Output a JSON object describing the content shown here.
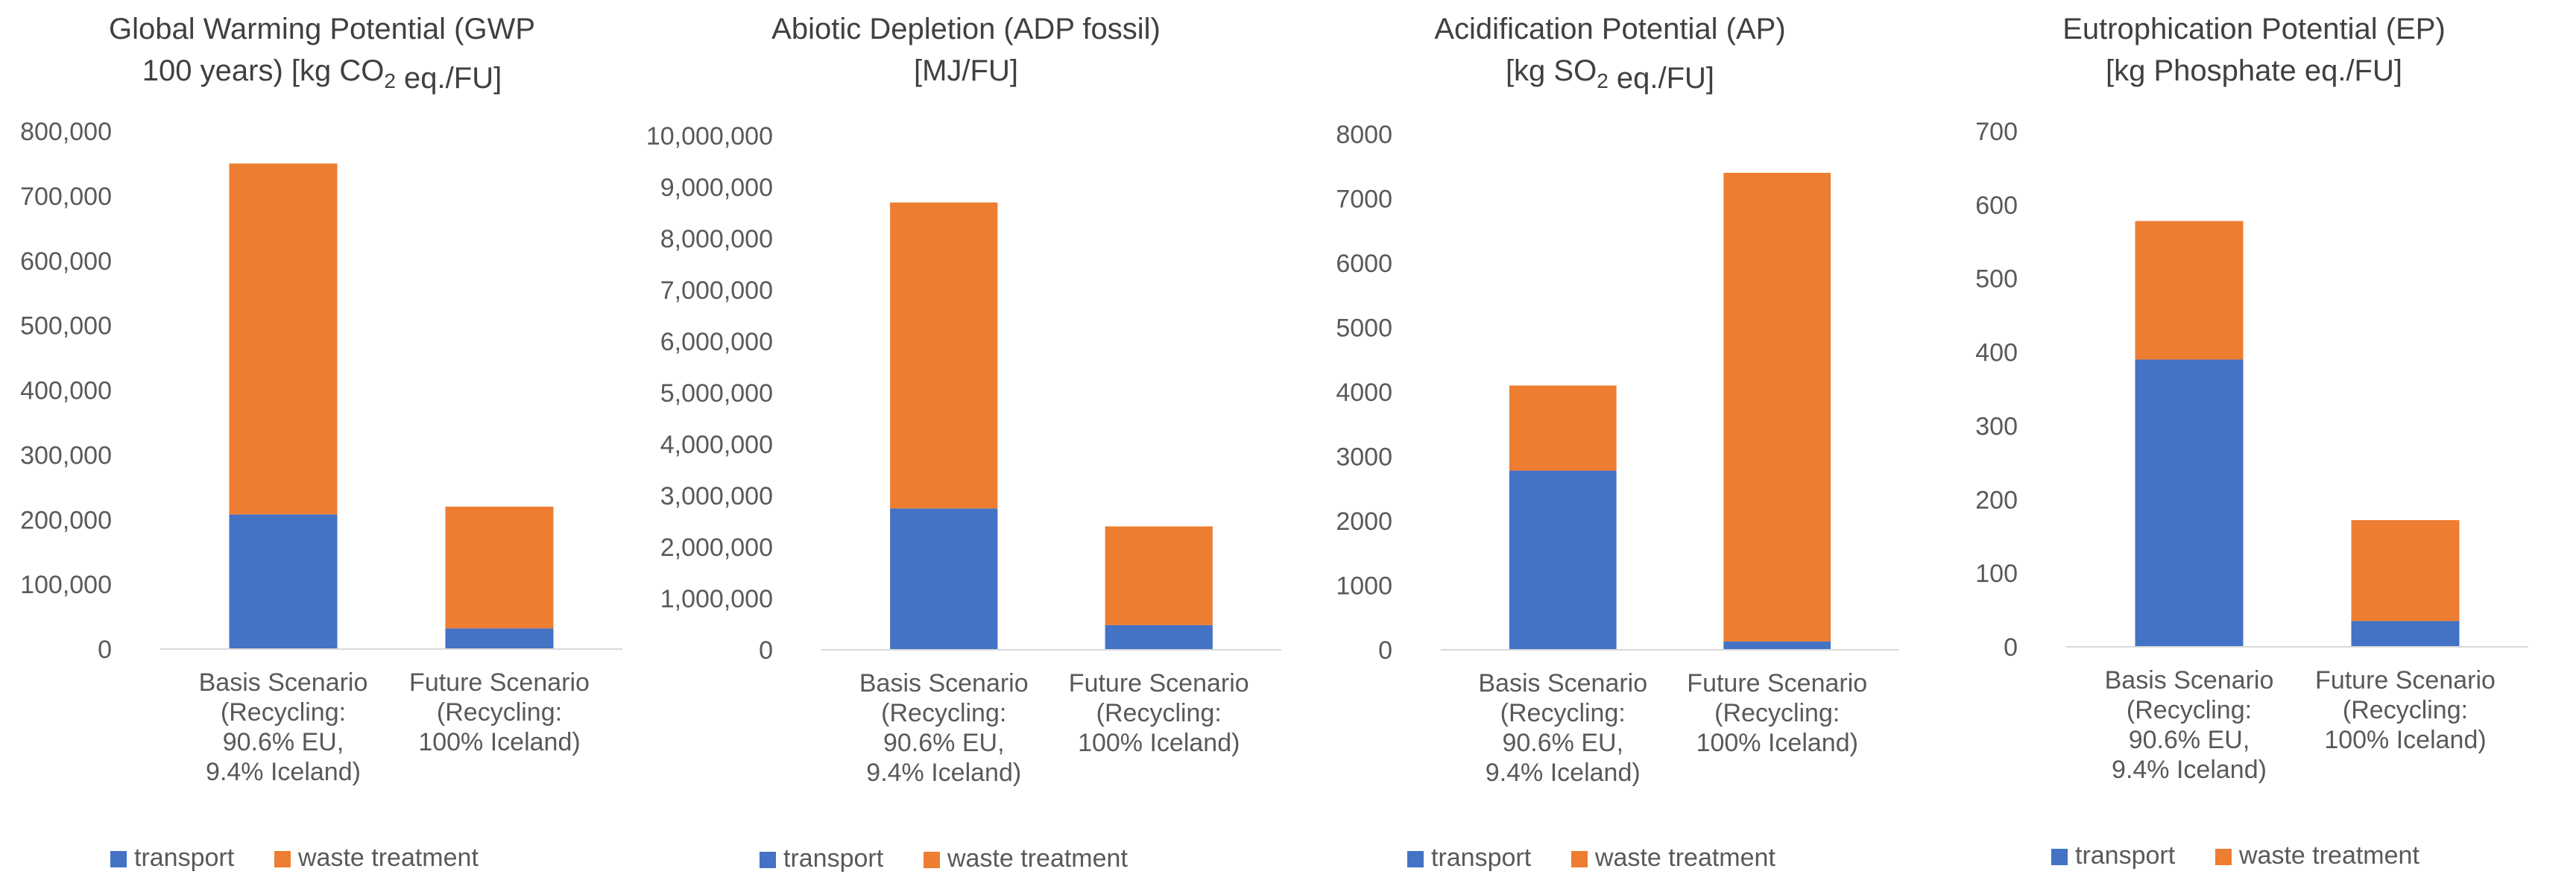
{
  "colors": {
    "transport": "#4472c4",
    "waste_treatment": "#ed7d31"
  },
  "chart_data": [
    {
      "type": "bar",
      "stacked": true,
      "title_lines": [
        [
          "Global Warming Potential (GWP"
        ],
        [
          "100 years) [kg CO",
          {
            "sub": "2"
          },
          " eq./FU]"
        ]
      ],
      "categories": [
        [
          "Basis Scenario",
          "(Recycling:",
          "90.6% EU,",
          "9.4% Iceland)"
        ],
        [
          "Future Scenario",
          "(Recycling:",
          "100% Iceland)"
        ]
      ],
      "series": [
        {
          "name": "transport",
          "values": [
            208000,
            32000
          ]
        },
        {
          "name": "waste treatment",
          "values": [
            542000,
            188000
          ]
        }
      ],
      "yticks": [
        "0",
        "100,000",
        "200,000",
        "300,000",
        "400,000",
        "500,000",
        "600,000",
        "700,000",
        "800,000"
      ],
      "ylim": [
        0,
        800000
      ],
      "legend": "bottom-left",
      "grid": false
    },
    {
      "type": "bar",
      "stacked": true,
      "title_lines": [
        [
          "Abiotic Depletion (ADP fossil)"
        ],
        [
          "[MJ/FU]"
        ]
      ],
      "categories": [
        [
          "Basis Scenario",
          "(Recycling:",
          "90.6% EU,",
          "9.4% Iceland)"
        ],
        [
          "Future Scenario",
          "(Recycling:",
          "100% Iceland)"
        ]
      ],
      "series": [
        {
          "name": "transport",
          "values": [
            2750000,
            480000
          ]
        },
        {
          "name": "waste treatment",
          "values": [
            5950000,
            1920000
          ]
        }
      ],
      "yticks": [
        "0",
        "1,000,000",
        "2,000,000",
        "3,000,000",
        "4,000,000",
        "5,000,000",
        "6,000,000",
        "7,000,000",
        "8,000,000",
        "9,000,000",
        "10,000,000"
      ],
      "ylim": [
        0,
        10000000
      ],
      "legend": "bottom-left",
      "grid": false
    },
    {
      "type": "bar",
      "stacked": true,
      "title_lines": [
        [
          "Acidification Potential (AP)"
        ],
        [
          "[kg SO",
          {
            "sub": "2"
          },
          " eq./FU]"
        ]
      ],
      "categories": [
        [
          "Basis Scenario",
          "(Recycling:",
          "90.6% EU,",
          "9.4% Iceland)"
        ],
        [
          "Future Scenario",
          "(Recycling:",
          "100% Iceland)"
        ]
      ],
      "series": [
        {
          "name": "transport",
          "values": [
            2780,
            130
          ]
        },
        {
          "name": "waste treatment",
          "values": [
            1320,
            7270
          ]
        }
      ],
      "yticks": [
        "0",
        "1000",
        "2000",
        "3000",
        "4000",
        "5000",
        "6000",
        "7000",
        "8000"
      ],
      "ylim": [
        0,
        8000
      ],
      "legend": "bottom-left",
      "grid": false
    },
    {
      "type": "bar",
      "stacked": true,
      "title_lines": [
        [
          "Eutrophication Potential (EP)"
        ],
        [
          "[kg Phosphate eq./FU]"
        ]
      ],
      "categories": [
        [
          "Basis Scenario",
          "(Recycling:",
          "90.6% EU,",
          "9.4% Iceland)"
        ],
        [
          "Future Scenario",
          "(Recycling:",
          "100% Iceland)"
        ]
      ],
      "series": [
        {
          "name": "transport",
          "values": [
            390,
            35
          ]
        },
        {
          "name": "waste treatment",
          "values": [
            188,
            137
          ]
        }
      ],
      "yticks": [
        "0",
        "100",
        "200",
        "300",
        "400",
        "500",
        "600",
        "700"
      ],
      "ylim": [
        0,
        700
      ],
      "legend": "bottom-left",
      "grid": false
    }
  ]
}
